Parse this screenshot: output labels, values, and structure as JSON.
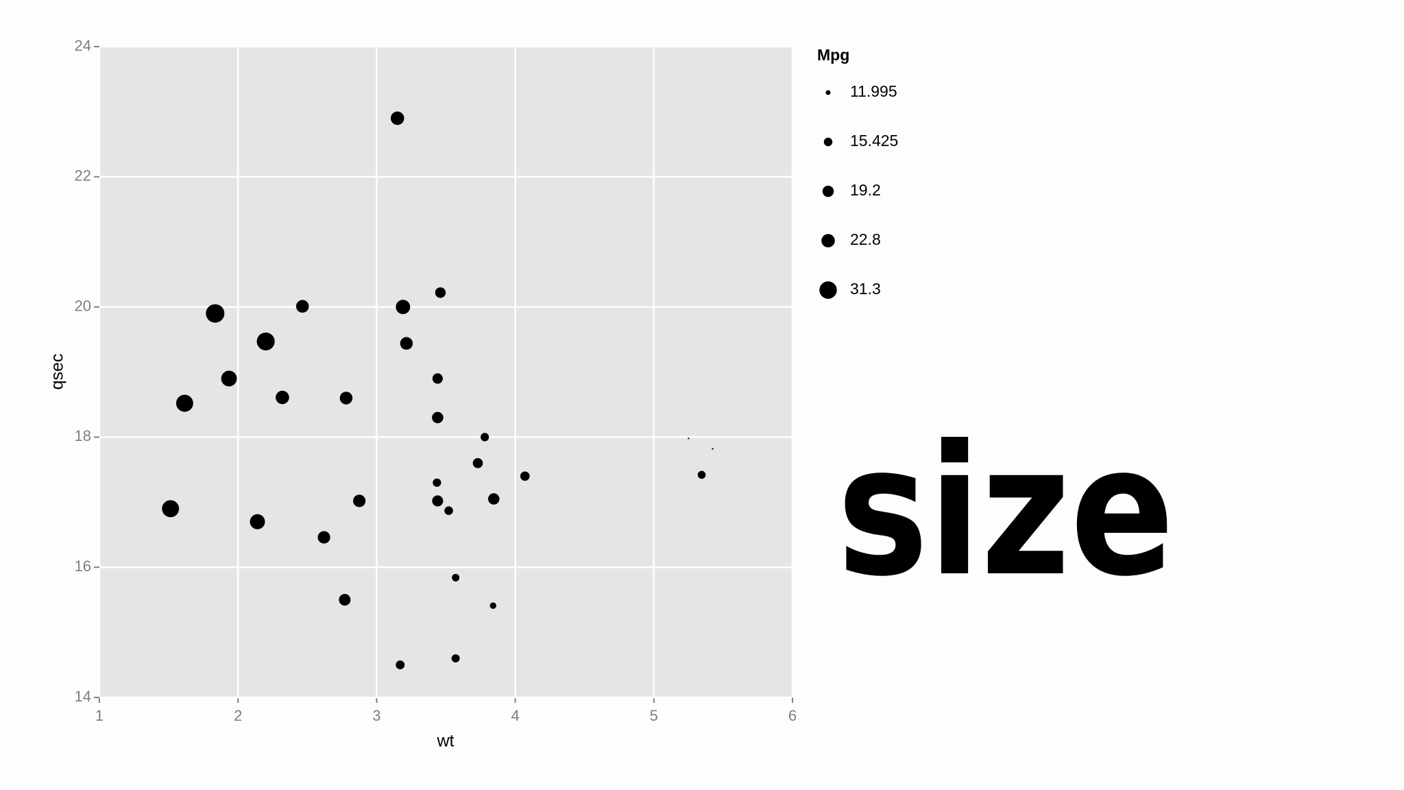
{
  "chart_data": {
    "type": "scatter",
    "x_label": "wt",
    "y_label": "qsec",
    "annotation": "size",
    "legend_title": "Mpg",
    "legend_breaks": [
      11.995,
      15.425,
      19.2,
      22.8,
      31.3
    ],
    "color": "#000000",
    "grid": true,
    "legend_position": "right",
    "xlim": [
      1,
      6
    ],
    "xticks": [
      1,
      2,
      3,
      4,
      5,
      6
    ],
    "ylim": [
      14,
      24
    ],
    "yticks": [
      14,
      16,
      18,
      20,
      22,
      24
    ],
    "x": [
      2.62,
      2.875,
      2.32,
      3.215,
      3.44,
      3.46,
      3.57,
      3.19,
      3.15,
      3.44,
      3.44,
      4.07,
      3.73,
      3.78,
      5.25,
      5.424,
      5.345,
      2.2,
      1.615,
      1.835,
      2.465,
      3.52,
      3.435,
      3.84,
      3.845,
      1.935,
      2.14,
      1.513,
      3.17,
      2.77,
      3.57,
      2.78
    ],
    "y": [
      16.46,
      17.02,
      18.61,
      19.44,
      17.02,
      20.22,
      15.84,
      20.0,
      22.9,
      18.3,
      18.9,
      17.4,
      17.6,
      18.0,
      17.98,
      17.82,
      17.42,
      19.47,
      18.52,
      19.9,
      20.01,
      16.87,
      17.3,
      15.41,
      17.05,
      18.9,
      16.7,
      16.9,
      14.5,
      15.5,
      14.6,
      18.6
    ],
    "size": [
      21.0,
      21.0,
      22.8,
      21.4,
      18.7,
      18.1,
      14.3,
      24.4,
      22.8,
      19.2,
      17.8,
      16.4,
      17.3,
      15.2,
      10.4,
      10.4,
      14.7,
      32.4,
      30.4,
      33.9,
      21.5,
      15.5,
      15.2,
      13.3,
      19.2,
      27.3,
      26.0,
      30.4,
      15.8,
      19.7,
      15.0,
      21.4
    ]
  }
}
